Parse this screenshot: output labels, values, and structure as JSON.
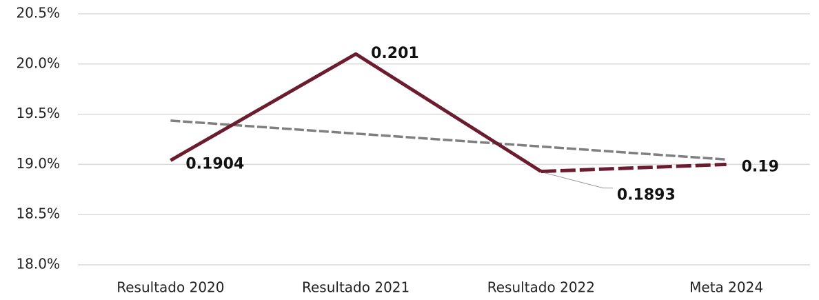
{
  "chart_data": {
    "type": "line",
    "categories": [
      "Resultado 2020",
      "Resultado 2021",
      "Resultado 2022",
      "Meta 2024"
    ],
    "series": [
      {
        "color": "#6b1d2f",
        "values": [
          19.04,
          20.1,
          18.93,
          19.0
        ],
        "value_labels": [
          "0.1904",
          "0.201",
          "0.1893",
          "0.19"
        ],
        "dash_from": 2
      },
      {
        "color": "#7f7f7f",
        "values": [
          19.436,
          19.307,
          19.178,
          19.049
        ],
        "style": "dashed"
      }
    ],
    "ylim": [
      18.0,
      20.5
    ],
    "yticks": [
      {
        "value": 18.0,
        "label": "18.0%"
      },
      {
        "value": 18.5,
        "label": "18.5%"
      },
      {
        "value": 19.0,
        "label": "19.0%"
      },
      {
        "value": 19.5,
        "label": "19.5%"
      },
      {
        "value": 20.0,
        "label": "20.0%"
      },
      {
        "value": 20.5,
        "label": "20.5%"
      }
    ],
    "grid": true
  }
}
